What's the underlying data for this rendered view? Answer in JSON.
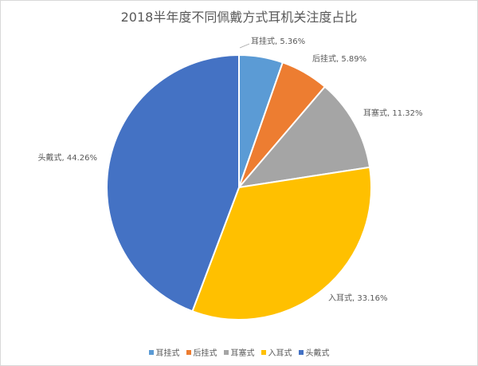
{
  "chart_data": {
    "type": "pie",
    "title": "2018半年度不同佩戴方式耳机关注度占比",
    "categories": [
      "耳挂式",
      "后挂式",
      "耳塞式",
      "入耳式",
      "头戴式"
    ],
    "values": [
      5.36,
      5.89,
      11.32,
      33.16,
      44.26
    ],
    "unit": "%",
    "data_labels": [
      "耳挂式, 5.36%",
      "后挂式, 5.89%",
      "耳塞式, 11.32%",
      "入耳式, 33.16%",
      "头戴式, 44.26%"
    ],
    "colors": [
      "#5b9bd5",
      "#ed7d31",
      "#a5a5a5",
      "#ffc000",
      "#4472c4"
    ],
    "legend_position": "bottom",
    "start_angle": "12 o'clock",
    "direction": "clockwise"
  }
}
